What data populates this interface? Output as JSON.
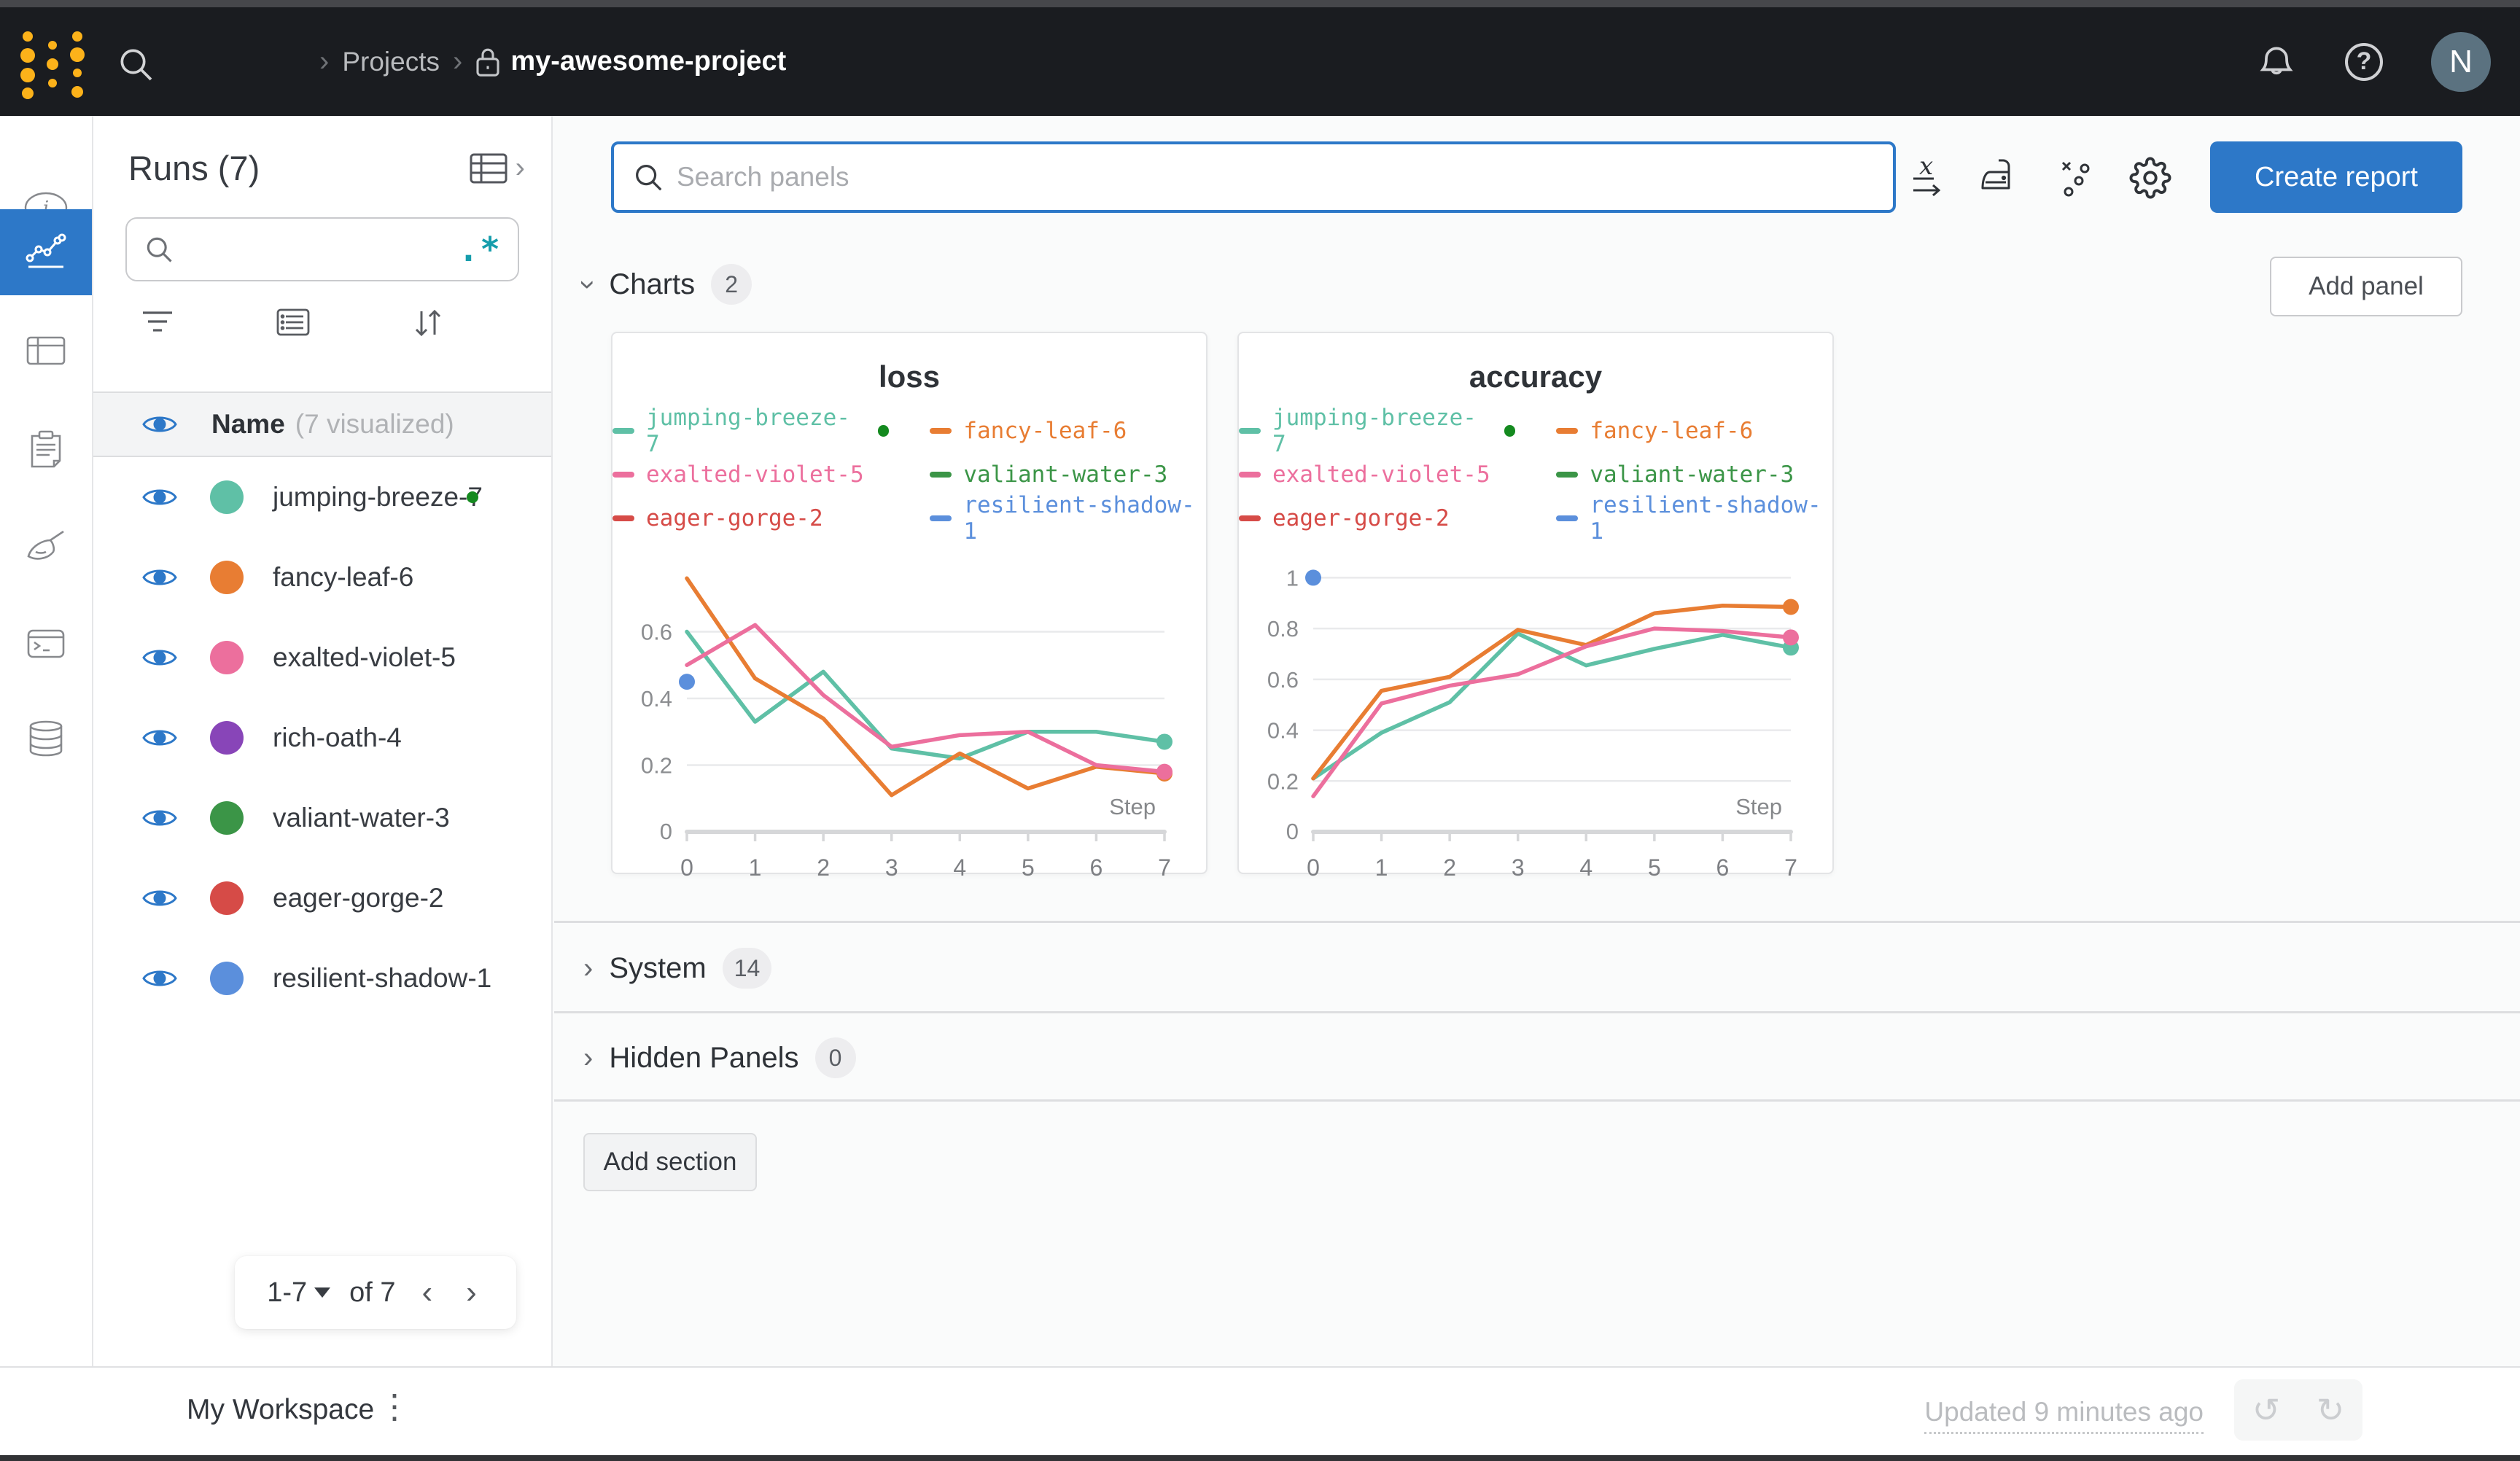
{
  "topbar": {
    "breadcrumb": {
      "sep": "›",
      "projects": "Projects",
      "project": "my-awesome-project"
    },
    "help_glyph": "?",
    "avatar_initial": "N"
  },
  "sidebar": {
    "title": "Runs (7)",
    "search_value": "",
    "regex_glyph": ".*",
    "name_header": {
      "label": "Name",
      "sub": "(7 visualized)"
    },
    "runs": [
      {
        "name": "jumping-breeze-7",
        "color": "#5fc0a6",
        "running": true
      },
      {
        "name": "fancy-leaf-6",
        "color": "#e87d33",
        "running": false
      },
      {
        "name": "exalted-violet-5",
        "color": "#ec6f9d",
        "running": false
      },
      {
        "name": "rich-oath-4",
        "color": "#8845b8",
        "running": false
      },
      {
        "name": "valiant-water-3",
        "color": "#3b9547",
        "running": false
      },
      {
        "name": "eager-gorge-2",
        "color": "#d64b47",
        "running": false
      },
      {
        "name": "resilient-shadow-1",
        "color": "#5b8fdc",
        "running": false
      }
    ],
    "pagination": {
      "range": "1-7",
      "of": "of 7",
      "prev": "‹",
      "next": "›"
    }
  },
  "main": {
    "search": {
      "placeholder": "Search panels"
    },
    "create_report_label": "Create report",
    "add_panel_label": "Add panel",
    "add_section_label": "Add section",
    "sections": {
      "charts": {
        "label": "Charts",
        "count": "2"
      },
      "system": {
        "label": "System",
        "count": "14"
      },
      "hidden": {
        "label": "Hidden Panels",
        "count": "0"
      }
    }
  },
  "footer": {
    "workspace": "My Workspace",
    "updated": "Updated 9 minutes ago",
    "undo_glyph": "↺",
    "redo_glyph": "↻"
  },
  "colors": {
    "accent_blue": "#2d78c8",
    "running_green": "#148a1f",
    "topbar_bg": "#1a1c20",
    "logo_yellow": "#fcb21a"
  },
  "chart_data": [
    {
      "type": "line",
      "title": "loss",
      "xlabel": "Step",
      "x": [
        0,
        1,
        2,
        3,
        4,
        5,
        6,
        7
      ],
      "xticks": [
        0,
        1,
        2,
        3,
        4,
        5,
        6,
        7
      ],
      "ylim": [
        0,
        0.8
      ],
      "yticks": [
        0,
        0.2,
        0.4,
        0.6
      ],
      "grid": true,
      "legend_position": "top",
      "series": [
        {
          "name": "jumping-breeze-7",
          "color": "#5fc0a6",
          "running": true,
          "end_dot": true,
          "values": [
            0.6,
            0.33,
            0.48,
            0.25,
            0.22,
            0.3,
            0.3,
            0.27
          ]
        },
        {
          "name": "fancy-leaf-6",
          "color": "#e87d33",
          "running": false,
          "end_dot": true,
          "values": [
            0.76,
            0.46,
            0.34,
            0.11,
            0.235,
            0.13,
            0.195,
            0.175
          ]
        },
        {
          "name": "exalted-violet-5",
          "color": "#ec6f9d",
          "running": false,
          "end_dot": true,
          "values": [
            0.5,
            0.62,
            0.41,
            0.255,
            0.29,
            0.3,
            0.2,
            0.18
          ]
        },
        {
          "name": "valiant-water-3",
          "color": "#3b9547",
          "running": false,
          "values": []
        },
        {
          "name": "eager-gorge-2",
          "color": "#d64b47",
          "running": false,
          "values": []
        },
        {
          "name": "resilient-shadow-1",
          "color": "#5b8fdc",
          "running": false,
          "values": [],
          "points": [
            [
              0,
              0.45
            ]
          ]
        }
      ]
    },
    {
      "type": "line",
      "title": "accuracy",
      "xlabel": "Step",
      "x": [
        0,
        1,
        2,
        3,
        4,
        5,
        6,
        7
      ],
      "xticks": [
        0,
        1,
        2,
        3,
        4,
        5,
        6,
        7
      ],
      "ylim": [
        0,
        1.05
      ],
      "yticks": [
        0,
        0.2,
        0.4,
        0.6,
        0.8,
        1
      ],
      "grid": true,
      "legend_position": "top",
      "series": [
        {
          "name": "jumping-breeze-7",
          "color": "#5fc0a6",
          "running": true,
          "end_dot": true,
          "values": [
            0.21,
            0.39,
            0.51,
            0.78,
            0.655,
            0.72,
            0.775,
            0.725
          ]
        },
        {
          "name": "fancy-leaf-6",
          "color": "#e87d33",
          "running": false,
          "end_dot": true,
          "values": [
            0.21,
            0.555,
            0.61,
            0.795,
            0.735,
            0.86,
            0.89,
            0.885
          ]
        },
        {
          "name": "exalted-violet-5",
          "color": "#ec6f9d",
          "running": false,
          "end_dot": true,
          "values": [
            0.14,
            0.505,
            0.575,
            0.62,
            0.73,
            0.8,
            0.79,
            0.765
          ]
        },
        {
          "name": "valiant-water-3",
          "color": "#3b9547",
          "running": false,
          "values": []
        },
        {
          "name": "eager-gorge-2",
          "color": "#d64b47",
          "running": false,
          "values": []
        },
        {
          "name": "resilient-shadow-1",
          "color": "#5b8fdc",
          "running": false,
          "values": [],
          "points": [
            [
              0,
              1.0
            ]
          ]
        }
      ]
    }
  ]
}
